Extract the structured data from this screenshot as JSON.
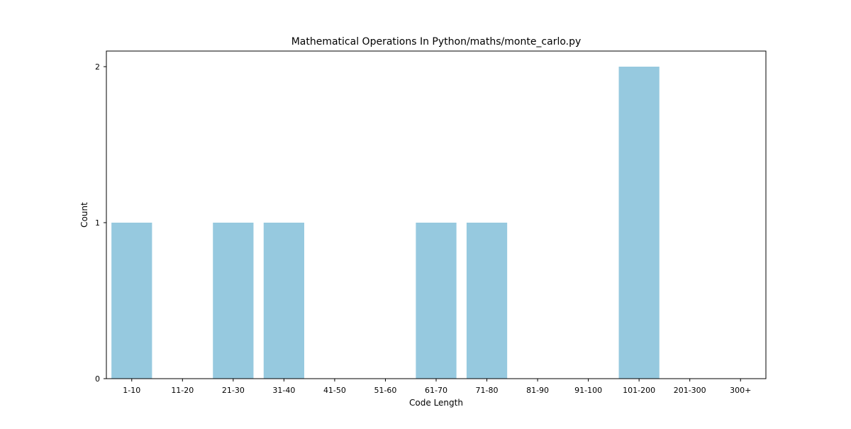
{
  "chart_data": {
    "type": "bar",
    "title": "Mathematical Operations In Python/maths/monte_carlo.py",
    "xlabel": "Code Length",
    "ylabel": "Count",
    "categories": [
      "1-10",
      "11-20",
      "21-30",
      "31-40",
      "41-50",
      "51-60",
      "61-70",
      "71-80",
      "81-90",
      "91-100",
      "101-200",
      "201-300",
      "300+"
    ],
    "values": [
      1,
      0,
      1,
      1,
      0,
      0,
      1,
      1,
      0,
      0,
      2,
      0,
      0
    ],
    "yticks": [
      0,
      1,
      2
    ],
    "ylim": [
      0,
      2.1
    ],
    "grid": false,
    "legend": "none",
    "bar_color": "#96c9df"
  }
}
